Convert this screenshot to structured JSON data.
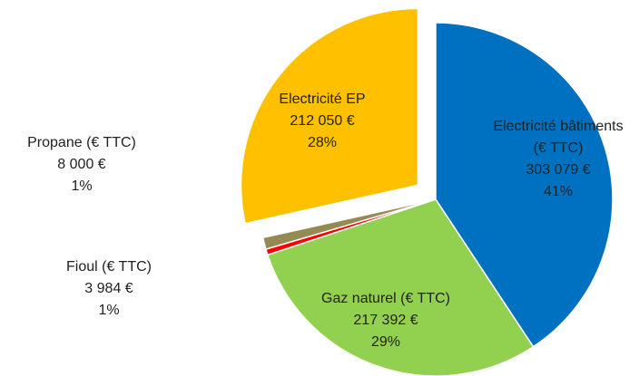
{
  "chart_data": {
    "type": "pie",
    "categories": [
      "Electricité bâtiments (€ TTC)",
      "Gaz naturel (€ TTC)",
      "Fioul (€ TTC)",
      "Propane (€ TTC)",
      "Electricité EP"
    ],
    "values": [
      303079,
      217392,
      3984,
      8000,
      212050
    ],
    "value_labels": [
      "303 079 €",
      "217 392 €",
      "3 984 €",
      "8 000 €",
      "212 050 €"
    ],
    "percent_labels": [
      "41%",
      "29%",
      "1%",
      "1%",
      "28%"
    ],
    "colors": [
      "#0070c0",
      "#92d050",
      "#ff0000",
      "#948a54",
      "#ffc000"
    ],
    "exploded": [
      false,
      false,
      false,
      false,
      true
    ]
  }
}
